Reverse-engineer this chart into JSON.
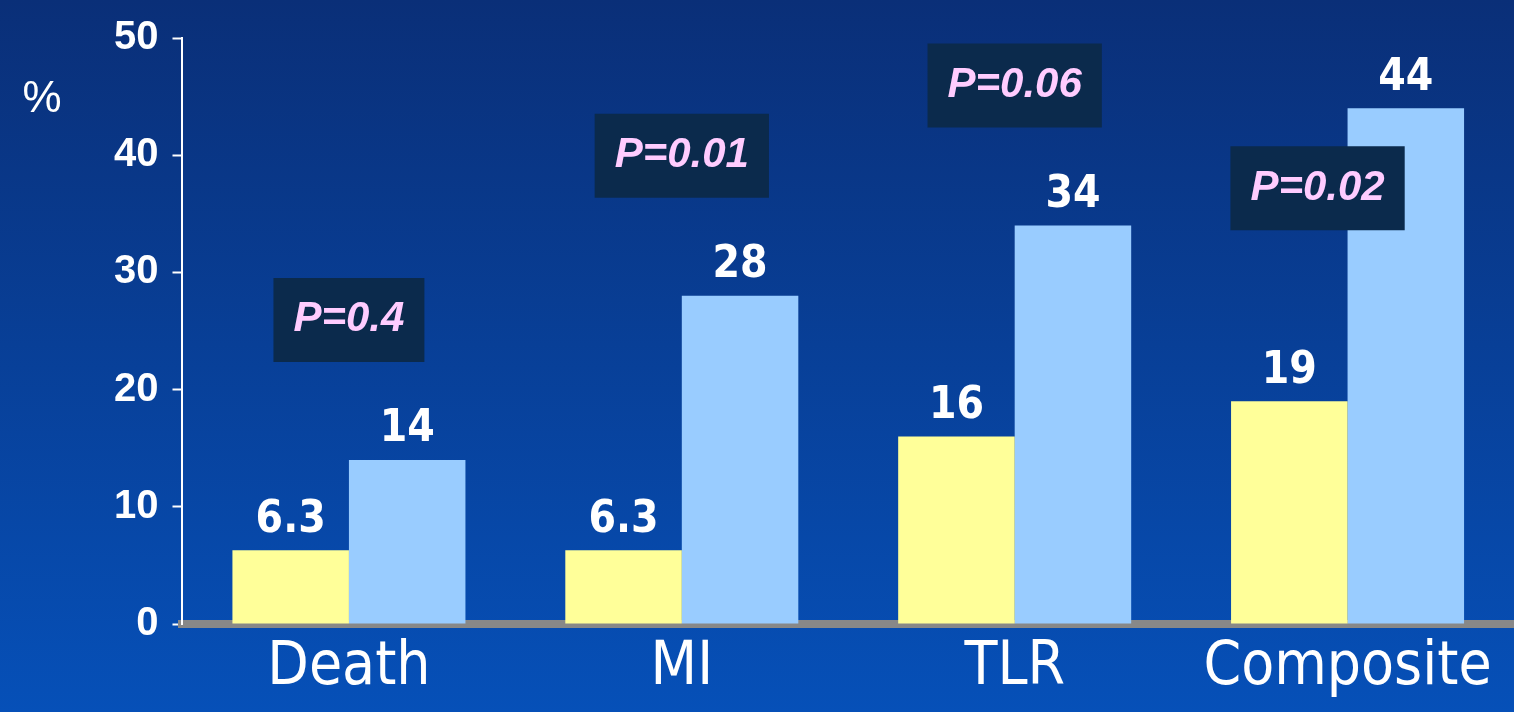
{
  "chart_data": {
    "type": "bar",
    "ylabel": "%",
    "categories": [
      "Death",
      "MI",
      "TLR",
      "Composite"
    ],
    "series": [
      {
        "color": "#ffff99",
        "values": [
          6.3,
          6.3,
          16,
          19
        ]
      },
      {
        "color": "#99ccff",
        "values": [
          14,
          28,
          34,
          44
        ]
      }
    ],
    "ylim": [
      0,
      50
    ],
    "yticks": [
      0,
      10,
      20,
      30,
      40,
      50
    ],
    "grid": false,
    "legend": false,
    "data_labels": true,
    "annotations": [
      "P=0.4",
      "P=0.01",
      "P=0.06",
      "P=0.02"
    ]
  }
}
